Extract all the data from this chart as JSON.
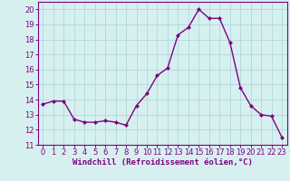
{
  "x": [
    0,
    1,
    2,
    3,
    4,
    5,
    6,
    7,
    8,
    9,
    10,
    11,
    12,
    13,
    14,
    15,
    16,
    17,
    18,
    19,
    20,
    21,
    22,
    23
  ],
  "y": [
    13.7,
    13.9,
    13.9,
    12.7,
    12.5,
    12.5,
    12.6,
    12.5,
    12.3,
    13.6,
    14.4,
    15.6,
    16.1,
    18.3,
    18.8,
    20.0,
    19.4,
    19.4,
    17.8,
    14.8,
    13.6,
    13.0,
    12.9,
    11.5
  ],
  "line_color": "#800080",
  "marker": "D",
  "marker_size": 2,
  "bg_color": "#d6f0f0",
  "grid_color": "#b0d8d8",
  "xlabel": "Windchill (Refroidissement éolien,°C)",
  "xlim": [
    -0.5,
    23.5
  ],
  "ylim": [
    11,
    20.5
  ],
  "yticks": [
    11,
    12,
    13,
    14,
    15,
    16,
    17,
    18,
    19,
    20
  ],
  "xticks": [
    0,
    1,
    2,
    3,
    4,
    5,
    6,
    7,
    8,
    9,
    10,
    11,
    12,
    13,
    14,
    15,
    16,
    17,
    18,
    19,
    20,
    21,
    22,
    23
  ],
  "tick_fontsize": 6,
  "xlabel_fontsize": 6.5,
  "line_width": 1.0
}
